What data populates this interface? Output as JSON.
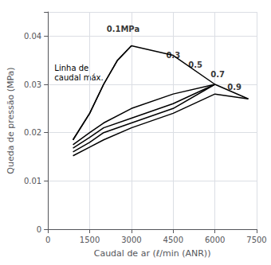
{
  "chart_data": {
    "type": "line",
    "xlabel": "Caudal de ar (ℓ/min (ANR))",
    "ylabel": "Queda de pressão (MPa)",
    "xlim": [
      0,
      7500
    ],
    "ylim": [
      0,
      0.045
    ],
    "xticks": [
      0,
      1500,
      3000,
      4500,
      6000,
      7500
    ],
    "yticks": [
      0,
      0.01,
      0.02,
      0.03,
      0.04
    ],
    "grid": true,
    "color": "#000000",
    "annotation": "Linha de\ncaudal máx.",
    "series": [
      {
        "name": "0.1MPa",
        "x": [
          900,
          1500,
          2000,
          2500,
          3000
        ],
        "values": [
          0.0185,
          0.024,
          0.03,
          0.035,
          0.038
        ],
        "label_x": 2700,
        "label_y": 0.0415
      },
      {
        "name": "0.3",
        "x": [
          900,
          1500,
          2000,
          3000,
          4500,
          6000
        ],
        "values": [
          0.0175,
          0.02,
          0.022,
          0.025,
          0.028,
          0.03
        ],
        "label_x": 4500,
        "label_y": 0.036
      },
      {
        "name": "0.5",
        "x": [
          900,
          1500,
          2000,
          3000,
          4500,
          6000
        ],
        "values": [
          0.0168,
          0.019,
          0.021,
          0.023,
          0.026,
          0.03
        ],
        "label_x": 5300,
        "label_y": 0.034
      },
      {
        "name": "0.7",
        "x": [
          900,
          1500,
          2000,
          3000,
          4500,
          6000
        ],
        "values": [
          0.016,
          0.018,
          0.02,
          0.022,
          0.025,
          0.03
        ],
        "label_x": 6100,
        "label_y": 0.032
      },
      {
        "name": "0.9",
        "x": [
          900,
          1500,
          2000,
          3000,
          4500,
          6000,
          7200
        ],
        "values": [
          0.0152,
          0.017,
          0.0185,
          0.021,
          0.024,
          0.028,
          0.027
        ],
        "label_x": 6700,
        "label_y": 0.0295
      },
      {
        "x": [
          900,
          1500,
          2000,
          2500,
          3000,
          4500,
          6000,
          7200
        ],
        "values": [
          0.0185,
          0.024,
          0.03,
          0.035,
          0.038,
          0.036,
          0.03,
          0.027
        ]
      }
    ]
  }
}
